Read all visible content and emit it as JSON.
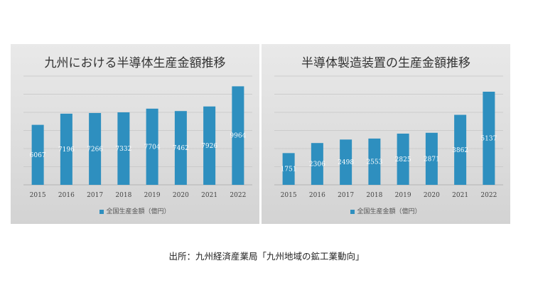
{
  "chart_data": [
    {
      "type": "bar",
      "title": "九州における半導体生産金額推移",
      "categories": [
        "2015",
        "2016",
        "2017",
        "2018",
        "2019",
        "2020",
        "2021",
        "2022"
      ],
      "series": [
        {
          "name": "全国生産金額（億円）",
          "values": [
            6067,
            7196,
            7266,
            7332,
            7704,
            7462,
            7926,
            9964
          ],
          "color": "#2e8fbf"
        }
      ],
      "ylim": [
        0,
        11000
      ],
      "grid": true,
      "legend": "bottom"
    },
    {
      "type": "bar",
      "title": "半導体製造装置の生産金額推移",
      "categories": [
        "2015",
        "2016",
        "2017",
        "2018",
        "2019",
        "2020",
        "2021",
        "2022"
      ],
      "series": [
        {
          "name": "全国生産金額（億円）",
          "values": [
            1751,
            2306,
            2498,
            2553,
            2825,
            2871,
            3862,
            5137
          ],
          "color": "#2e8fbf"
        }
      ],
      "ylim": [
        0,
        6000
      ],
      "grid": true,
      "legend": "bottom"
    }
  ],
  "source": "出所：九州経済産業局「九州地域の鉱工業動向」"
}
